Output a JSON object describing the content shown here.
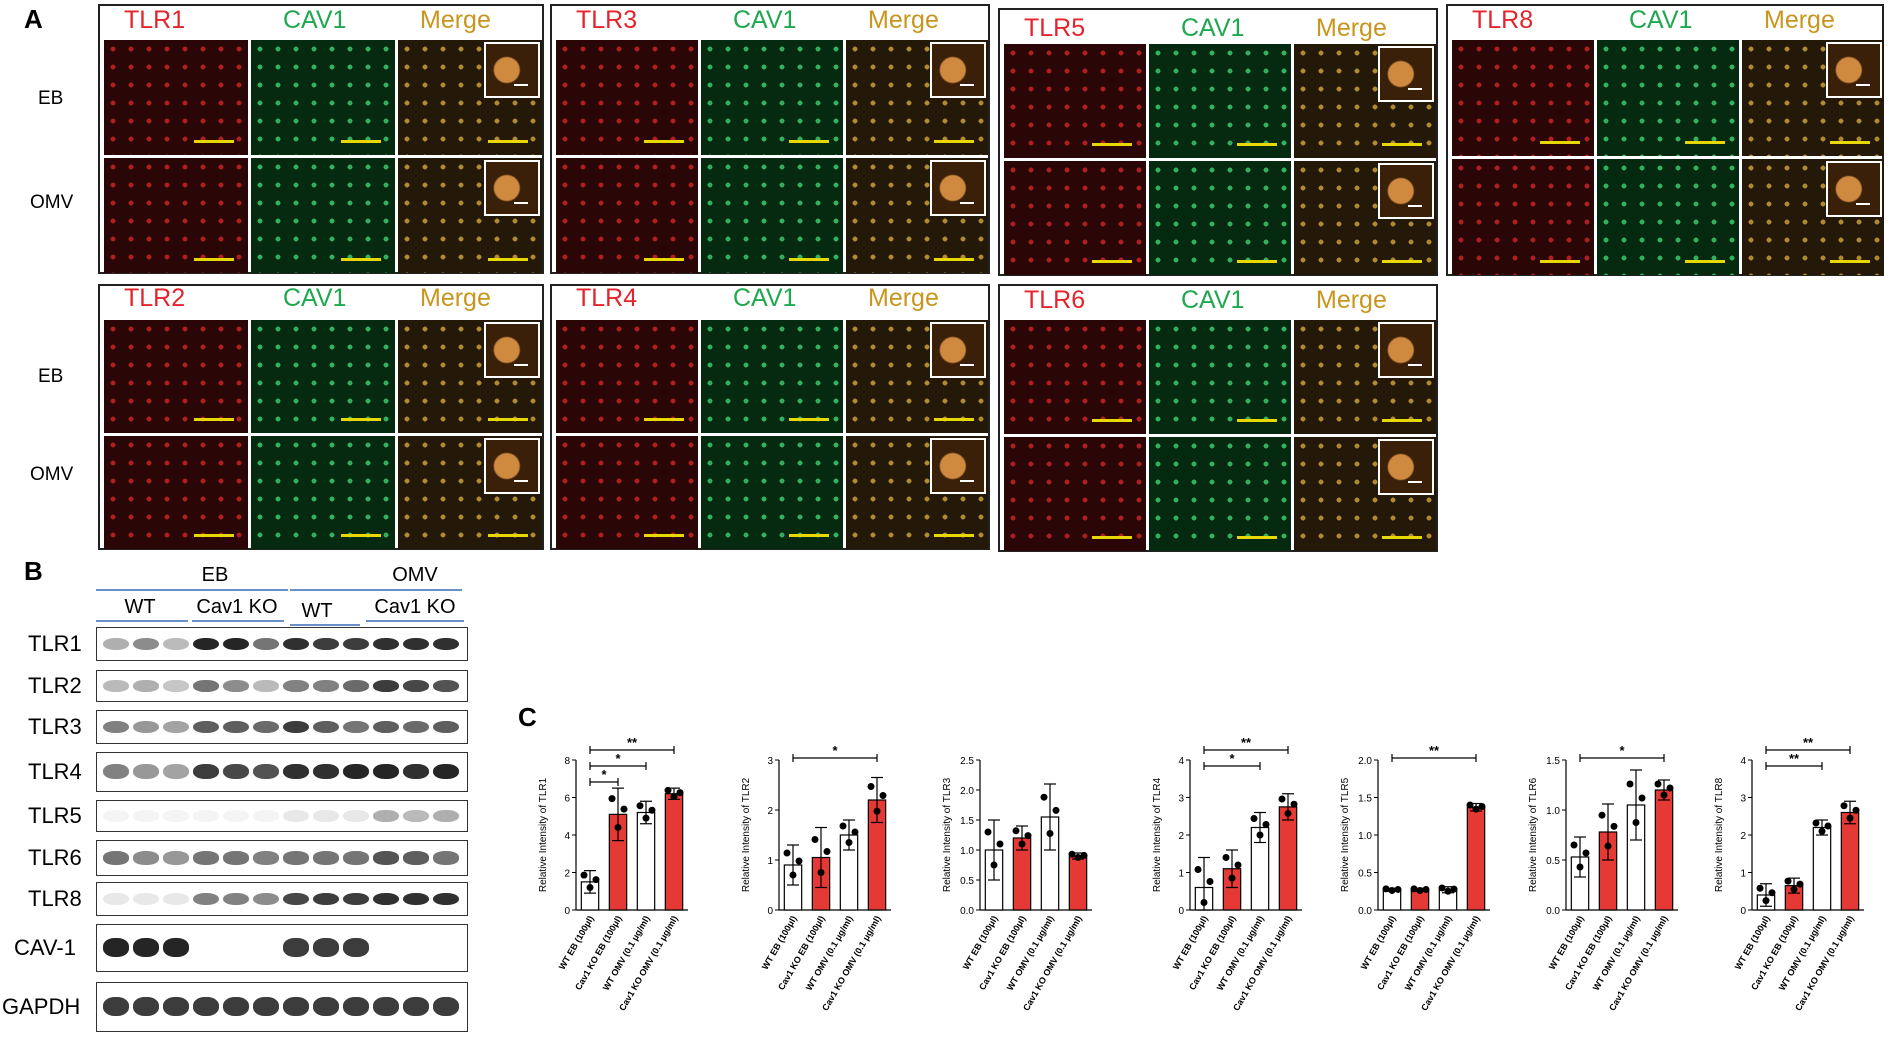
{
  "panel_labels": {
    "a": "A",
    "b": "B",
    "c": "C"
  },
  "panel_a": {
    "channels": {
      "tlr1": "TLR1",
      "tlr2": "TLR2",
      "tlr3": "TLR3",
      "tlr4": "TLR4",
      "tlr5": "TLR5",
      "tlr6": "TLR6",
      "tlr8": "TLR8",
      "cav1": "CAV1",
      "merge": "Merge"
    },
    "rows": {
      "eb": "EB",
      "omv": "OMV"
    }
  },
  "panel_b": {
    "groups": {
      "eb": "EB",
      "omv": "OMV",
      "wt": "WT",
      "cav1ko": "Cav1 KO"
    },
    "blots": [
      "TLR1",
      "TLR2",
      "TLR3",
      "TLR4",
      "TLR5",
      "TLR6",
      "TLR8",
      "CAV-1",
      "GAPDH"
    ]
  },
  "chart_data": [
    {
      "type": "bar",
      "ylabel": "Relative Intensity of TLR1",
      "categories": [
        "WT EB (100μl)",
        "Cav1 KO EB (100μl)",
        "WT OMV (0.1 μg/ml)",
        "Cav1 KO OMV (0.1 μg/ml)"
      ],
      "values": [
        1.5,
        5.1,
        5.2,
        6.2
      ],
      "errors": [
        0.6,
        1.4,
        0.6,
        0.3
      ],
      "colors": [
        "#ffffff",
        "#e53935",
        "#ffffff",
        "#e53935"
      ],
      "ylim": [
        0,
        8
      ],
      "yticks": [
        0,
        2,
        4,
        6,
        8
      ],
      "sig": [
        {
          "from": 0,
          "to": 1,
          "label": "*"
        },
        {
          "from": 0,
          "to": 2,
          "label": "*"
        },
        {
          "from": 0,
          "to": 3,
          "label": "**"
        }
      ]
    },
    {
      "type": "bar",
      "ylabel": "Relative Intensity of TLR2",
      "categories": [
        "WT EB (100μl)",
        "Cav1 KO EB (100μl)",
        "WT OMV (0.1 μg/ml)",
        "Cav1 KO OMV (0.1 μg/ml)"
      ],
      "values": [
        0.9,
        1.05,
        1.5,
        2.2
      ],
      "errors": [
        0.4,
        0.6,
        0.3,
        0.45
      ],
      "colors": [
        "#ffffff",
        "#e53935",
        "#ffffff",
        "#e53935"
      ],
      "ylim": [
        0,
        3
      ],
      "yticks": [
        0,
        1,
        2,
        3
      ],
      "sig": [
        {
          "from": 0,
          "to": 3,
          "label": "*"
        }
      ]
    },
    {
      "type": "bar",
      "ylabel": "Relative Intensity of TLR3",
      "categories": [
        "WT EB (100μl)",
        "Cav1 KO EB (100μl)",
        "WT OMV (0.1 μg/ml)",
        "Cav1 KO OMV (0.1 μg/ml)"
      ],
      "values": [
        1.0,
        1.2,
        1.55,
        0.9
      ],
      "errors": [
        0.5,
        0.2,
        0.55,
        0.05
      ],
      "colors": [
        "#ffffff",
        "#e53935",
        "#ffffff",
        "#e53935"
      ],
      "ylim": [
        0,
        2.5
      ],
      "yticks": [
        0,
        0.5,
        1.0,
        1.5,
        2.0,
        2.5
      ],
      "sig": []
    },
    {
      "type": "bar",
      "ylabel": "Relative Intensity of TLR4",
      "categories": [
        "WT EB (100μl)",
        "Cav1 KO EB (100μl)",
        "WT OMV (0.1 μg/ml)",
        "Cav1 KO OMV (0.1 μg/ml)"
      ],
      "values": [
        0.6,
        1.1,
        2.2,
        2.75
      ],
      "errors": [
        0.8,
        0.5,
        0.4,
        0.35
      ],
      "colors": [
        "#ffffff",
        "#e53935",
        "#ffffff",
        "#e53935"
      ],
      "ylim": [
        0,
        4
      ],
      "yticks": [
        0,
        1,
        2,
        3,
        4
      ],
      "sig": [
        {
          "from": 0,
          "to": 2,
          "label": "*"
        },
        {
          "from": 0,
          "to": 3,
          "label": "**"
        }
      ]
    },
    {
      "type": "bar",
      "ylabel": "Relative Intensity of TLR5",
      "categories": [
        "WT EB (100μl)",
        "Cav1 KO EB (100μl)",
        "WT OMV (0.1 μg/ml)",
        "Cav1 KO OMV (0.1 μg/ml)"
      ],
      "values": [
        0.27,
        0.27,
        0.27,
        1.37
      ],
      "errors": [
        0.02,
        0.02,
        0.04,
        0.05
      ],
      "colors": [
        "#ffffff",
        "#e53935",
        "#ffffff",
        "#e53935"
      ],
      "ylim": [
        0,
        2.0
      ],
      "yticks": [
        0,
        0.5,
        1.0,
        1.5,
        2.0
      ],
      "sig": [
        {
          "from": 0,
          "to": 3,
          "label": "**"
        }
      ]
    },
    {
      "type": "bar",
      "ylabel": "Relative Intensity of TLR6",
      "categories": [
        "WT EB (100μl)",
        "Cav1 KO EB (100μl)",
        "WT OMV (0.1 μg/ml)",
        "Cav1 KO OMV (0.1 μg/ml)"
      ],
      "values": [
        0.53,
        0.78,
        1.05,
        1.2
      ],
      "errors": [
        0.2,
        0.28,
        0.35,
        0.1
      ],
      "colors": [
        "#ffffff",
        "#e53935",
        "#ffffff",
        "#e53935"
      ],
      "ylim": [
        0,
        1.5
      ],
      "yticks": [
        0,
        0.5,
        1.0,
        1.5
      ],
      "sig": [
        {
          "from": 0,
          "to": 3,
          "label": "*"
        }
      ]
    },
    {
      "type": "bar",
      "ylabel": "Relative Intensity of TLR8",
      "categories": [
        "WT EB (100μl)",
        "Cav1 KO EB (100μl)",
        "WT OMV (0.1 μg/ml)",
        "Cav1 KO OMV (0.1 μg/ml)"
      ],
      "values": [
        0.4,
        0.65,
        2.2,
        2.6
      ],
      "errors": [
        0.3,
        0.2,
        0.2,
        0.3
      ],
      "colors": [
        "#ffffff",
        "#e53935",
        "#ffffff",
        "#e53935"
      ],
      "ylim": [
        0,
        4
      ],
      "yticks": [
        0,
        1,
        2,
        3,
        4
      ],
      "sig": [
        {
          "from": 0,
          "to": 2,
          "label": "**"
        },
        {
          "from": 0,
          "to": 3,
          "label": "**"
        }
      ]
    }
  ],
  "colors": {
    "fluor_red": "#e3242b",
    "fluor_green": "#1fa84f",
    "merge": "#c8961e",
    "scale_bar": "#e6d800",
    "bar_red": "#e53935",
    "wt_line": "#6a8fc9"
  }
}
